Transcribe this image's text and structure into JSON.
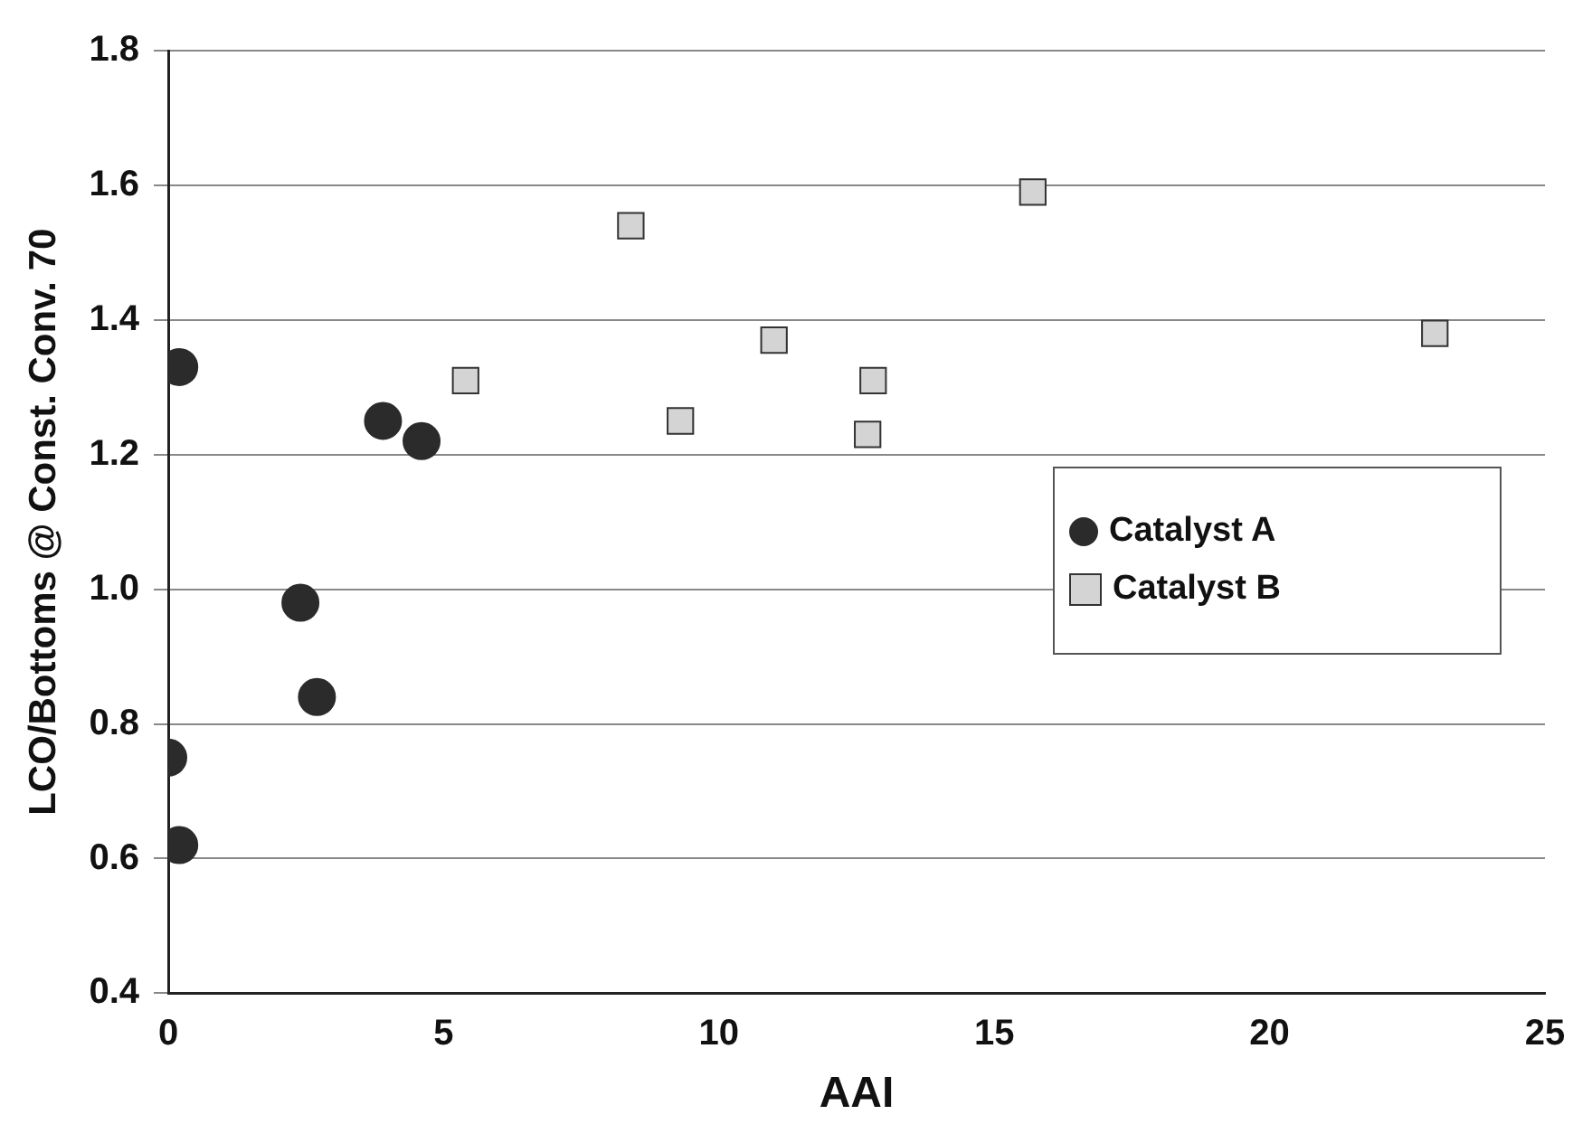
{
  "chart_data": {
    "type": "scatter",
    "xlabel": "AAI",
    "ylabel": "LCO/Bottoms @ Const. Conv. 70",
    "xlim": [
      0,
      25
    ],
    "xticks": [
      0,
      5,
      10,
      15,
      20,
      25
    ],
    "ylim": [
      0.4,
      1.8
    ],
    "yticks": [
      {
        "value": 0.4,
        "label": "0.4"
      },
      {
        "value": 0.6,
        "label": "0.6"
      },
      {
        "value": 0.8,
        "label": "0.8"
      },
      {
        "value": 1.0,
        "label": "1.0"
      },
      {
        "value": 1.2,
        "label": "1.2"
      },
      {
        "value": 1.4,
        "label": "1.4"
      },
      {
        "value": 1.6,
        "label": "1.6"
      },
      {
        "value": 1.8,
        "label": "1.8"
      }
    ],
    "grid": "y",
    "legend": "right",
    "series": [
      {
        "name": "Catalyst A",
        "color": "#2b2b2b",
        "marker": "circle",
        "x": [
          0,
          0.2,
          0.2,
          2.4,
          2.7,
          3.9,
          4.6
        ],
        "values": [
          0.75,
          0.62,
          1.33,
          0.98,
          0.84,
          1.25,
          1.22
        ]
      },
      {
        "name": "Catalyst B",
        "color": "#d4d4d4",
        "marker": "square",
        "x": [
          5.4,
          8.4,
          9.3,
          11.0,
          12.7,
          12.8,
          15.7,
          23.0
        ],
        "values": [
          1.31,
          1.54,
          1.25,
          1.37,
          1.23,
          1.31,
          1.59,
          1.38
        ]
      }
    ]
  }
}
